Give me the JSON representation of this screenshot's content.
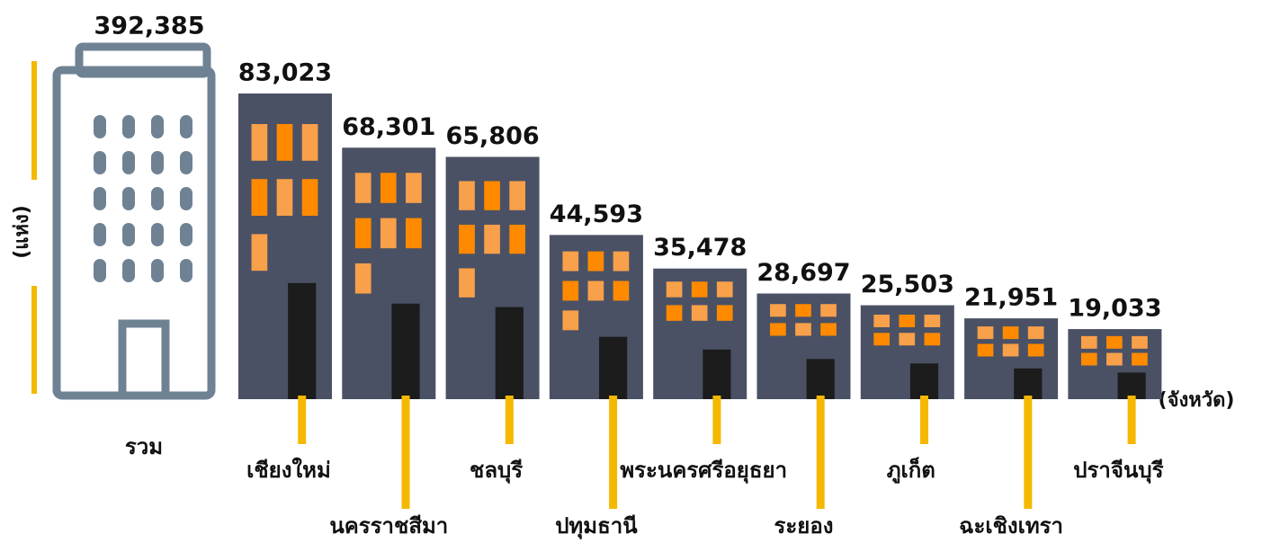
{
  "chart_data": {
    "type": "bar",
    "y_label": "(แห่ง)",
    "x_label": "(จังหวัด)",
    "total": {
      "label": "รวม",
      "value": 392385,
      "value_label": "392,385"
    },
    "categories": [
      "เชียงใหม่",
      "นครราชสีมา",
      "ชลบุรี",
      "ปทุมธานี",
      "พระนครศรีอยุธยา",
      "ระยอง",
      "ภูเก็ต",
      "ฉะเชิงเทรา",
      "ปราจีนบุรี"
    ],
    "values": [
      83023,
      68301,
      65806,
      44593,
      35478,
      28697,
      25503,
      21951,
      19033
    ],
    "value_labels": [
      "83,023",
      "68,301",
      "65,806",
      "44,593",
      "35,478",
      "28,697",
      "25,503",
      "21,951",
      "19,033"
    ],
    "color": "#4a5165",
    "window_colors": [
      "#f9a04a",
      "#ff8a00"
    ]
  }
}
